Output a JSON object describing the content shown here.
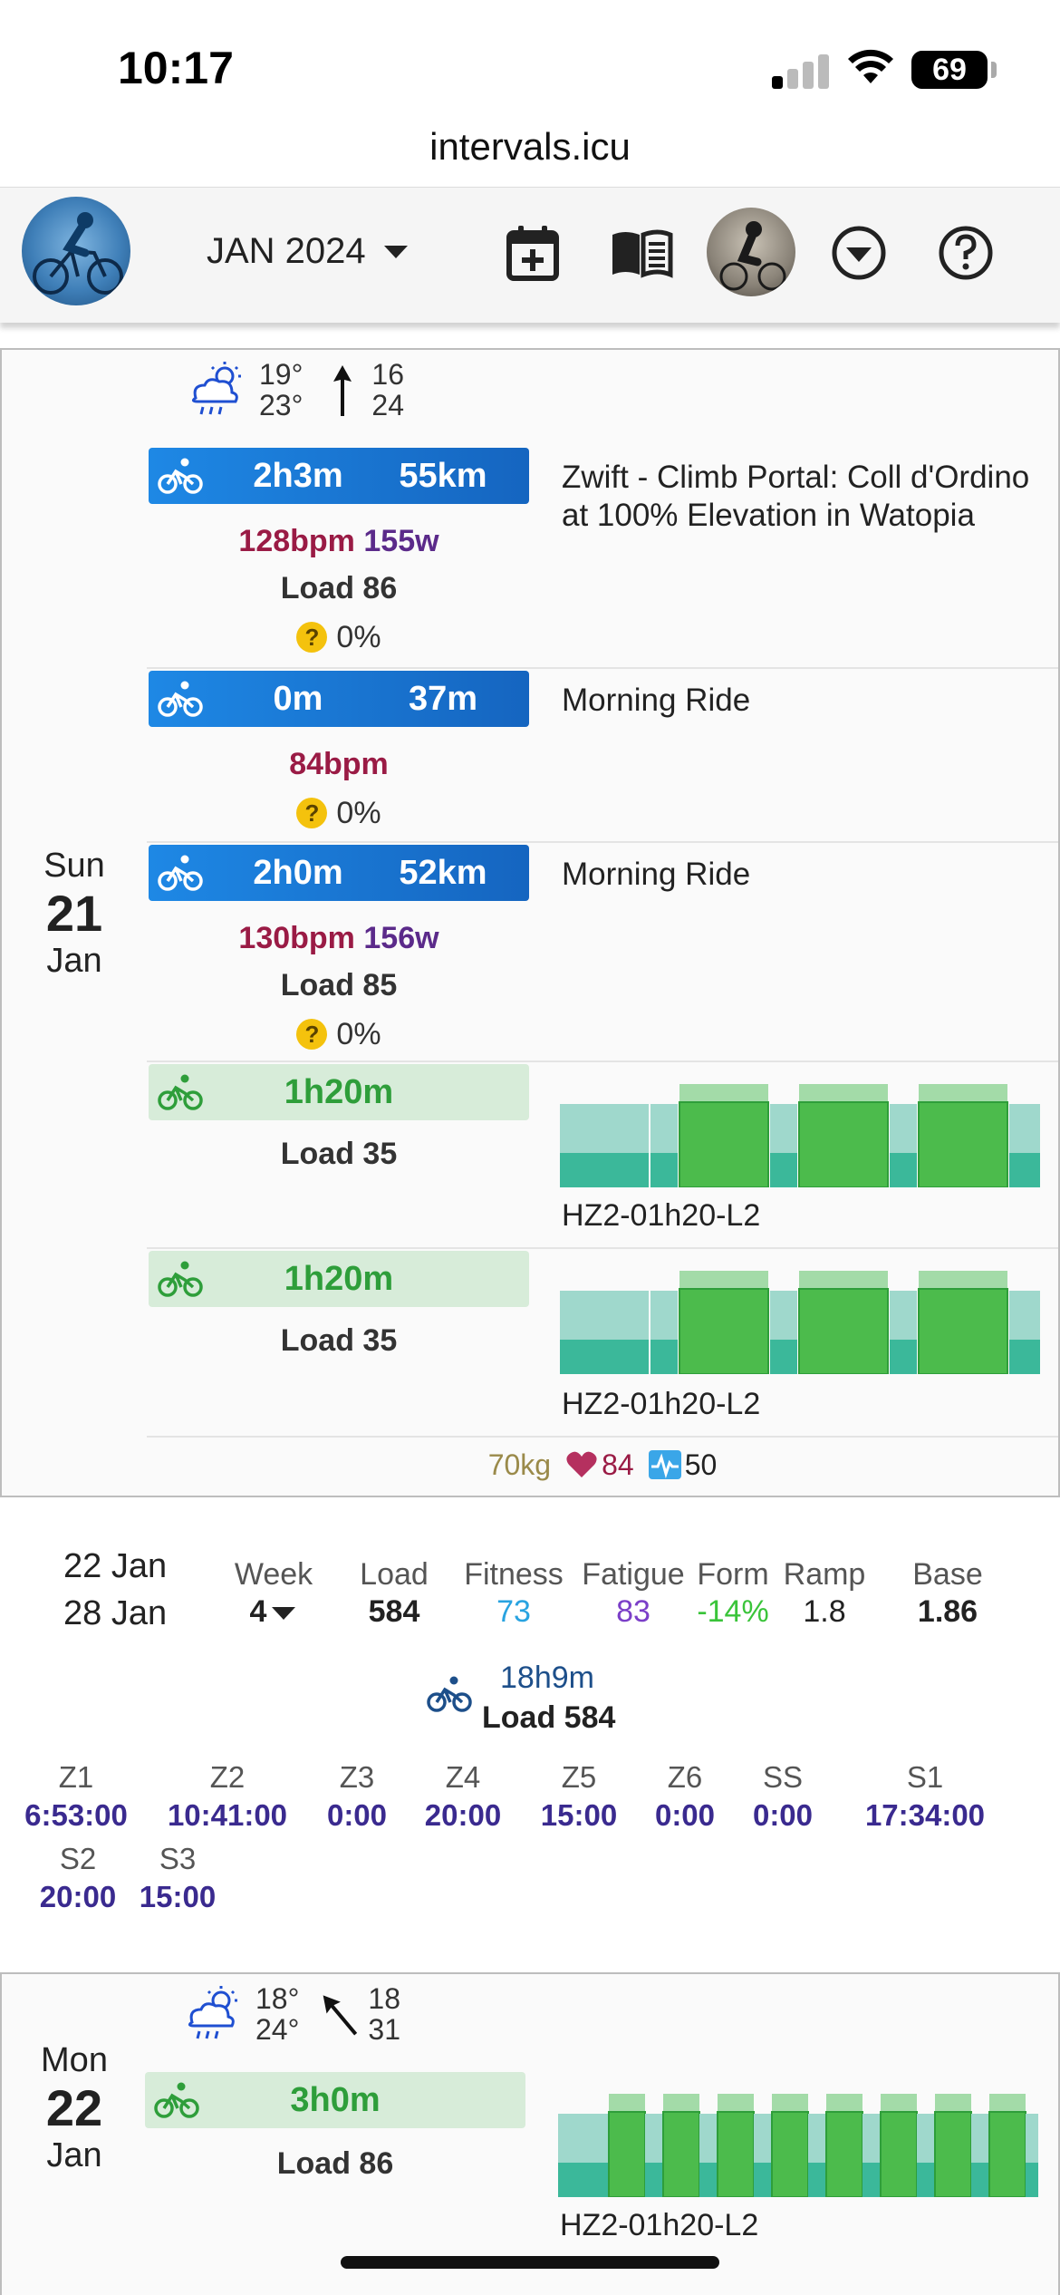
{
  "status": {
    "time": "10:17",
    "battery": "69"
  },
  "browser": {
    "url": "intervals.icu"
  },
  "toolbar": {
    "month": "JAN 2024"
  },
  "day1": {
    "dow": "Sun",
    "day": "21",
    "mon": "Jan",
    "weather": {
      "t_low": "19°",
      "t_high": "23°",
      "wind1": "16",
      "wind2": "24"
    },
    "activities": [
      {
        "v1": "2h3m",
        "v2": "55km",
        "bpm": "128bpm",
        "watts": "155w",
        "load": "Load 86",
        "compliance": "0%",
        "title": "Zwift - Climb Portal: Coll d'Ordino at 100% Elevation in Watopia"
      },
      {
        "v1": "0m",
        "v2": "37m",
        "bpm": "84bpm",
        "compliance": "0%",
        "title": "Morning Ride"
      },
      {
        "v1": "2h0m",
        "v2": "52km",
        "bpm": "130bpm",
        "watts": "156w",
        "load": "Load 85",
        "compliance": "0%",
        "title": "Morning Ride"
      }
    ],
    "planned": [
      {
        "duration": "1h20m",
        "load": "Load 35",
        "name": "HZ2-01h20-L2"
      },
      {
        "duration": "1h20m",
        "load": "Load 35",
        "name": "HZ2-01h20-L2"
      }
    ],
    "wellness": {
      "weight": "70kg",
      "resting_hr": "84",
      "hrv": "50"
    }
  },
  "week": {
    "date_from": "22 Jan",
    "date_to": "28 Jan",
    "columns": [
      {
        "h": "Week",
        "v": "4"
      },
      {
        "h": "Load",
        "v": "584"
      },
      {
        "h": "Fitness",
        "v": "73"
      },
      {
        "h": "Fatigue",
        "v": "83"
      },
      {
        "h": "Form",
        "v": "-14%"
      },
      {
        "h": "Ramp",
        "v": "1.8"
      },
      {
        "h": "Base",
        "v": "1.86"
      }
    ],
    "total_time": "18h9m",
    "total_load": "Load 584",
    "zones": [
      {
        "h": "Z1",
        "v": "6:53:00"
      },
      {
        "h": "Z2",
        "v": "10:41:00"
      },
      {
        "h": "Z3",
        "v": "0:00"
      },
      {
        "h": "Z4",
        "v": "20:00"
      },
      {
        "h": "Z5",
        "v": "15:00"
      },
      {
        "h": "Z6",
        "v": "0:00"
      },
      {
        "h": "SS",
        "v": "0:00"
      },
      {
        "h": "S1",
        "v": "17:34:00"
      },
      {
        "h": "S2",
        "v": "20:00"
      },
      {
        "h": "S3",
        "v": "15:00"
      }
    ]
  },
  "day2": {
    "dow": "Mon",
    "day": "22",
    "mon": "Jan",
    "weather": {
      "t_low": "18°",
      "t_high": "24°",
      "wind1": "18",
      "wind2": "31"
    },
    "planned": {
      "duration": "3h0m",
      "load": "Load 86",
      "name": "HZ2-01h20-L2"
    }
  },
  "colors": {
    "activity_blue": "#1976d2",
    "planned_green": "#2e9e3a",
    "bpm": "#9a1b45",
    "watts": "#5b2a8a",
    "fitness": "#29a3e0",
    "fatigue": "#7b3fc8",
    "form": "#3ac43a",
    "zones": "#3a2a8f"
  },
  "icons": [
    "cellular-signal-icon",
    "wifi-icon",
    "battery-icon",
    "add-calendar-icon",
    "book-icon",
    "chevron-circle-icon",
    "help-icon",
    "bike-icon",
    "weather-icon",
    "wind-arrow-icon",
    "heart-icon",
    "hrv-icon"
  ]
}
